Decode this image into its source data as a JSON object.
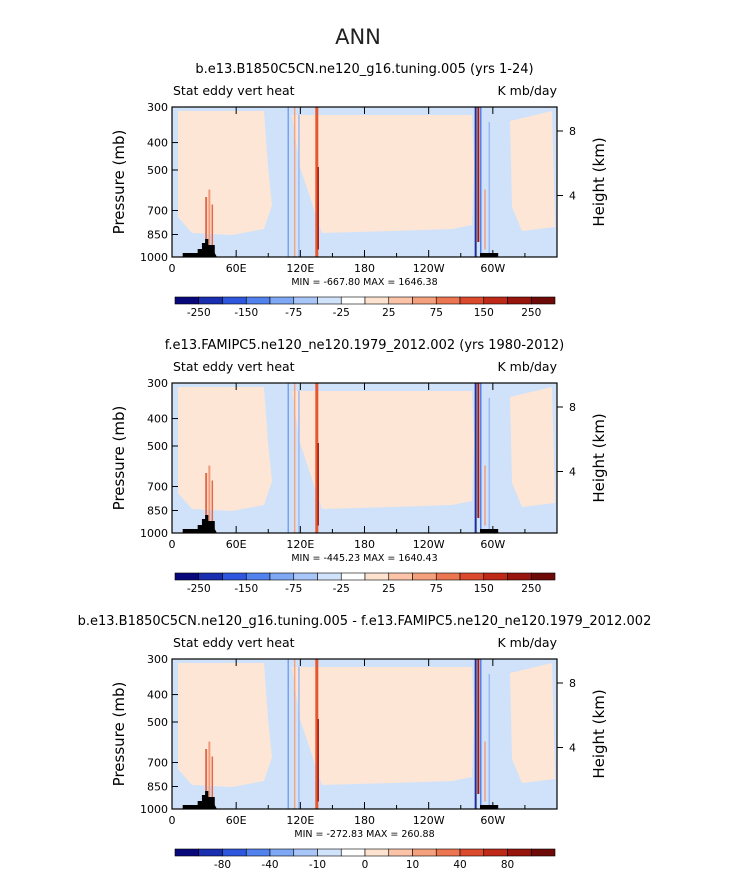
{
  "page_title": "ANN",
  "chart_data": [
    {
      "type": "heatmap",
      "title": "b.e13.B1850C5CN.ne120_g16.tuning.005 (yrs 1-24)",
      "left_label": "Stat eddy vert heat",
      "right_label": "K mb/day",
      "ylabel": "Pressure (mb)",
      "y2label": "Height (km)",
      "yticks": [
        "300",
        "400",
        "500",
        "700",
        "850",
        "1000"
      ],
      "y2ticks": [
        "8",
        "4"
      ],
      "xticks": [
        "0",
        "60E",
        "120E",
        "180",
        "120W",
        "60W"
      ],
      "xrange": [
        0,
        360
      ],
      "ylim": [
        1000,
        300
      ],
      "minmax": "MIN = -667.80   MAX = 1646.38",
      "colorbar_labels": [
        "-250",
        "-150",
        "-75",
        "-25",
        "25",
        "75",
        "150",
        "250"
      ],
      "colorbar_colors": [
        "#08087a",
        "#1a2fb0",
        "#2e57dd",
        "#5282ee",
        "#7fa8f4",
        "#a8c6f7",
        "#d1e2fb",
        "#ffffff",
        "#fde2d0",
        "#fbc4a8",
        "#f5a07c",
        "#ec7652",
        "#dc4a2e",
        "#bf2a18",
        "#98150e",
        "#6e0a08"
      ],
      "bottom_axis": "x-only"
    },
    {
      "type": "heatmap",
      "title": "f.e13.FAMIPC5.ne120_ne120.1979_2012.002 (yrs 1980-2012)",
      "left_label": "Stat eddy vert heat",
      "right_label": "K mb/day",
      "ylabel": "Pressure (mb)",
      "y2label": "Height (km)",
      "yticks": [
        "300",
        "400",
        "500",
        "700",
        "850",
        "1000"
      ],
      "y2ticks": [
        "8",
        "4"
      ],
      "xticks": [
        "0",
        "60E",
        "120E",
        "180",
        "120W",
        "60W"
      ],
      "xrange": [
        0,
        360
      ],
      "ylim": [
        1000,
        300
      ],
      "minmax": "MIN = -445.23   MAX = 1640.43",
      "colorbar_labels": [
        "-250",
        "-150",
        "-75",
        "-25",
        "25",
        "75",
        "150",
        "250"
      ],
      "colorbar_colors": [
        "#08087a",
        "#1a2fb0",
        "#2e57dd",
        "#5282ee",
        "#7fa8f4",
        "#a8c6f7",
        "#d1e2fb",
        "#ffffff",
        "#fde2d0",
        "#fbc4a8",
        "#f5a07c",
        "#ec7652",
        "#dc4a2e",
        "#bf2a18",
        "#98150e",
        "#6e0a08"
      ]
    },
    {
      "type": "heatmap",
      "title": "b.e13.B1850C5CN.ne120_g16.tuning.005 - f.e13.FAMIPC5.ne120_ne120.1979_2012.002",
      "left_label": "Stat eddy vert heat",
      "right_label": "K mb/day",
      "ylabel": "Pressure (mb)",
      "y2label": "Height (km)",
      "yticks": [
        "300",
        "400",
        "500",
        "700",
        "850",
        "1000"
      ],
      "y2ticks": [
        "8",
        "4"
      ],
      "xticks": [
        "0",
        "60E",
        "120E",
        "180",
        "120W",
        "60W"
      ],
      "xrange": [
        0,
        360
      ],
      "ylim": [
        1000,
        300
      ],
      "minmax": "MIN = -272.83   MAX = 260.88",
      "colorbar_labels": [
        "-80",
        "-40",
        "-10",
        "0",
        "10",
        "40",
        "80"
      ],
      "colorbar_colors": [
        "#08087a",
        "#1a2fb0",
        "#2e57dd",
        "#5282ee",
        "#7fa8f4",
        "#a8c6f7",
        "#d1e2fb",
        "#ffffff",
        "#fde2d0",
        "#fbc4a8",
        "#f5a07c",
        "#ec7652",
        "#dc4a2e",
        "#bf2a18",
        "#98150e",
        "#6e0a08"
      ]
    }
  ]
}
